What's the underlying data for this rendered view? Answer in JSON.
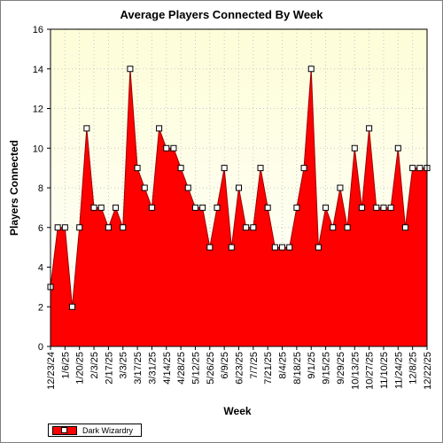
{
  "chart_data": {
    "type": "area",
    "title": "Average Players Connected By Week",
    "xlabel": "Week",
    "ylabel": "Players Connected",
    "ylim": [
      0,
      16
    ],
    "yticks": [
      0,
      2,
      4,
      6,
      8,
      10,
      12,
      14,
      16
    ],
    "grid": true,
    "legend_position": "bottom-left",
    "x_tick_labels": [
      "12/23/24",
      "1/6/25",
      "1/20/25",
      "2/3/25",
      "2/17/25",
      "3/3/25",
      "3/17/25",
      "3/31/25",
      "4/14/25",
      "4/28/25",
      "5/12/25",
      "5/26/25",
      "6/9/25",
      "6/23/25",
      "7/7/25",
      "7/21/25",
      "8/4/25",
      "8/18/25",
      "9/1/25",
      "9/15/25",
      "9/29/25",
      "10/13/25",
      "10/27/25",
      "11/10/25",
      "11/24/25",
      "12/8/25",
      "12/22/25"
    ],
    "series": [
      {
        "name": "Dark Wizardry",
        "color": "#ff0000",
        "x": [
          "12/23/24",
          "12/30/24",
          "1/6/25",
          "1/13/25",
          "1/20/25",
          "1/27/25",
          "2/3/25",
          "2/10/25",
          "2/17/25",
          "2/24/25",
          "3/3/25",
          "3/10/25",
          "3/17/25",
          "3/24/25",
          "3/31/25",
          "4/7/25",
          "4/14/25",
          "4/21/25",
          "4/28/25",
          "5/5/25",
          "5/12/25",
          "5/19/25",
          "5/26/25",
          "6/2/25",
          "6/9/25",
          "6/16/25",
          "6/23/25",
          "6/30/25",
          "7/7/25",
          "7/14/25",
          "7/21/25",
          "7/28/25",
          "8/4/25",
          "8/11/25",
          "8/18/25",
          "8/25/25",
          "9/1/25",
          "9/8/25",
          "9/15/25",
          "9/22/25",
          "9/29/25",
          "10/6/25",
          "10/13/25",
          "10/20/25",
          "10/27/25",
          "11/3/25",
          "11/10/25",
          "11/17/25",
          "11/24/25",
          "12/1/25",
          "12/8/25",
          "12/15/25",
          "12/22/25"
        ],
        "values": [
          3,
          6,
          6,
          2,
          6,
          11,
          7,
          7,
          6,
          7,
          6,
          14,
          9,
          8,
          7,
          11,
          10,
          10,
          9,
          8,
          7,
          7,
          5,
          7,
          9,
          5,
          8,
          6,
          6,
          9,
          7,
          5,
          5,
          5,
          7,
          9,
          14,
          5,
          7,
          6,
          8,
          6,
          10,
          7,
          11,
          7,
          7,
          7,
          10,
          6,
          9,
          9,
          9
        ]
      }
    ]
  }
}
